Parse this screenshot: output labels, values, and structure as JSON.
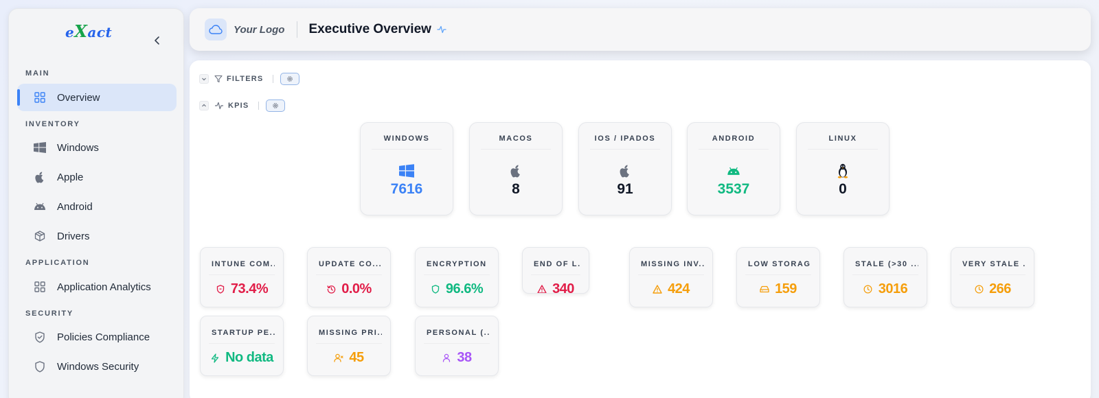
{
  "sidebar": {
    "brand": {
      "pre": "e",
      "x": "X",
      "post": "act"
    },
    "sections": {
      "main": "MAIN",
      "inventory": "INVENTORY",
      "application": "APPLICATION",
      "security": "SECURITY"
    },
    "items": {
      "overview": "Overview",
      "windows": "Windows",
      "apple": "Apple",
      "android": "Android",
      "drivers": "Drivers",
      "application_analytics": "Application Analytics",
      "policies_compliance": "Policies Compliance",
      "windows_security": "Windows Security"
    },
    "active": "overview"
  },
  "header": {
    "logo_text": "Your Logo",
    "title": "Executive Overview"
  },
  "toolbar": {
    "filters_label": "FILTERS",
    "kpis_label": "KPIS"
  },
  "os_cards": [
    {
      "title": "WINDOWS",
      "value": "7616",
      "icon": "windows-icon",
      "color": "#3b82f6"
    },
    {
      "title": "MACOS",
      "value": "8",
      "icon": "apple-icon",
      "color": "#111827"
    },
    {
      "title": "IOS / IPADOS",
      "value": "91",
      "icon": "apple-icon",
      "color": "#111827"
    },
    {
      "title": "ANDROID",
      "value": "3537",
      "icon": "android-icon",
      "color": "#10b981"
    },
    {
      "title": "LINUX",
      "value": "0",
      "icon": "linux-icon",
      "color": "#111827"
    }
  ],
  "kpis": [
    {
      "title": "INTUNE COM...",
      "value": "73.4%",
      "icon": "shield-icon",
      "color": "#e11d48"
    },
    {
      "title": "UPDATE CO...",
      "value": "0.0%",
      "icon": "history-icon",
      "color": "#e11d48"
    },
    {
      "title": "ENCRYPTION",
      "value": "96.6%",
      "icon": "shield-icon",
      "color": "#10b981"
    },
    {
      "title": "END OF L...",
      "value": "340",
      "icon": "warning-icon",
      "color": "#e11d48"
    },
    {
      "title": "MISSING INV...",
      "value": "424",
      "icon": "warning-icon",
      "color": "#f59e0b"
    },
    {
      "title": "LOW STORAGE",
      "value": "159",
      "icon": "hard-drive-icon",
      "color": "#f59e0b"
    },
    {
      "title": "STALE (>30 ...",
      "value": "3016",
      "icon": "clock-icon",
      "color": "#f59e0b"
    },
    {
      "title": "VERY STALE ...",
      "value": "266",
      "icon": "clock-icon",
      "color": "#f59e0b"
    },
    {
      "title": "STARTUP PE...",
      "value": "No data",
      "icon": "bolt-icon",
      "color": "#10b981"
    },
    {
      "title": "MISSING PRI...",
      "value": "45",
      "icon": "user-x-icon",
      "color": "#f59e0b"
    },
    {
      "title": "PERSONAL (...",
      "value": "38",
      "icon": "user-icon",
      "color": "#a855f7"
    }
  ]
}
